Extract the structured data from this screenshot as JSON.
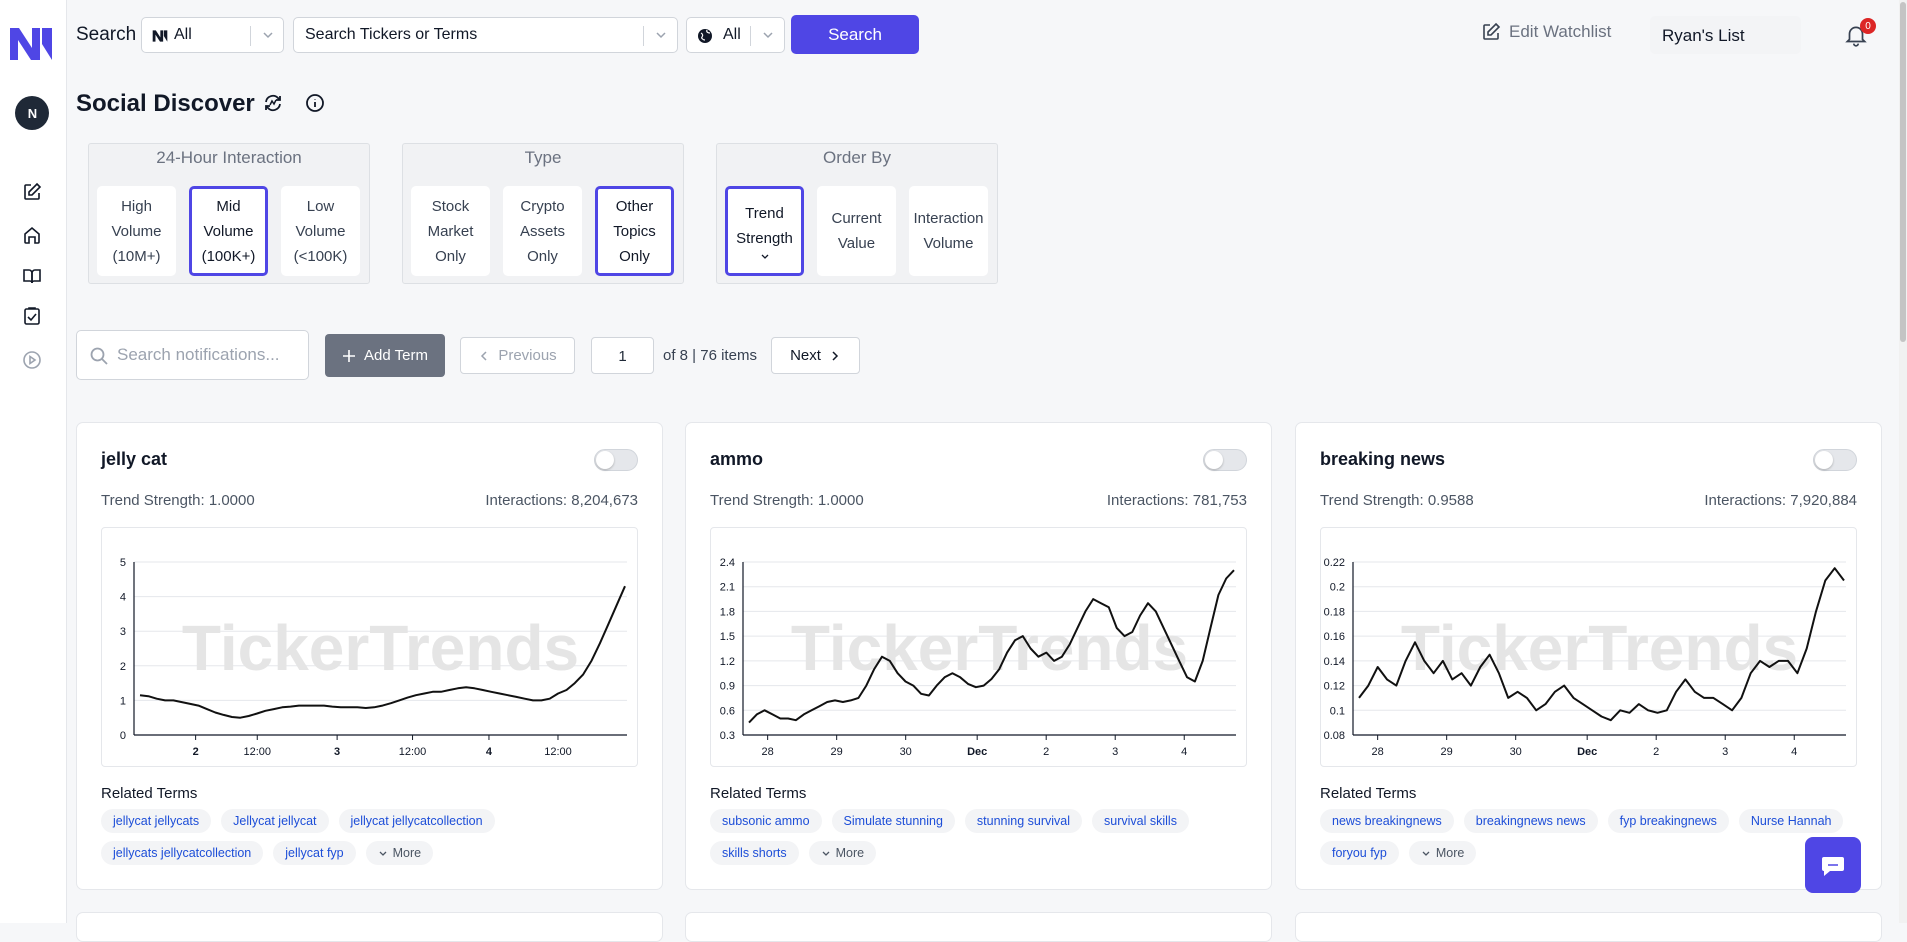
{
  "sidebar": {
    "logo": "N-logo",
    "avatar_text": "N",
    "items": [
      {
        "name": "edit-icon",
        "icon": "square-pen"
      },
      {
        "name": "home-icon",
        "icon": "home"
      },
      {
        "name": "book-icon",
        "icon": "book-open"
      },
      {
        "name": "clipboard-check-icon",
        "icon": "clipboard-check"
      },
      {
        "name": "play-circle-icon",
        "icon": "play-circle"
      }
    ]
  },
  "topbar": {
    "search_label": "Search",
    "source_select": "All",
    "term_select_placeholder": "Search Tickers or Terms",
    "region_select": "All",
    "search_button": "Search",
    "edit_watchlist": "Edit Watchlist",
    "watchlist_name": "Ryan's List",
    "notification_count": "0"
  },
  "page": {
    "title": "Social Discover"
  },
  "filters": [
    {
      "label": "24-Hour Interaction",
      "options": [
        {
          "lines": [
            "High",
            "Volume",
            "(10M+)"
          ],
          "active": false
        },
        {
          "lines": [
            "Mid",
            "Volume",
            "(100K+)"
          ],
          "active": true
        },
        {
          "lines": [
            "Low",
            "Volume",
            "(<100K)"
          ],
          "active": false
        }
      ]
    },
    {
      "label": "Type",
      "options": [
        {
          "lines": [
            "Stock",
            "Market",
            "Only"
          ],
          "active": false
        },
        {
          "lines": [
            "Crypto",
            "Assets",
            "Only"
          ],
          "active": false
        },
        {
          "lines": [
            "Other",
            "Topics",
            "Only"
          ],
          "active": true
        }
      ]
    },
    {
      "label": "Order By",
      "options": [
        {
          "lines": [
            "Trend",
            "Strength"
          ],
          "active": true,
          "chevron": true
        },
        {
          "lines": [
            "Current",
            "Value"
          ],
          "active": false
        },
        {
          "lines": [
            "Interaction",
            "Volume"
          ],
          "active": false
        }
      ]
    }
  ],
  "controls": {
    "search_placeholder": "Search notifications...",
    "add_term": "Add Term",
    "previous": "Previous",
    "page": "1",
    "page_info": "of 8 | 76 items",
    "next": "Next"
  },
  "watermark": "TickerTrends",
  "cards": [
    {
      "title": "jelly cat",
      "trend_strength": "Trend Strength: 1.0000",
      "interactions": "Interactions: 8,204,673",
      "related_label": "Related Terms",
      "tags": [
        "jellycat jellycats",
        "Jellycat jellycat",
        "jellycat jellycatcollection",
        "jellycats jellycatcollection",
        "jellycat fyp"
      ],
      "more": "More",
      "chart_data": {
        "type": "line",
        "ylim": [
          0,
          5
        ],
        "yticks": [
          "5",
          "4",
          "3",
          "2",
          "1",
          "0"
        ],
        "xticks": [
          {
            "label": "2",
            "bold": true,
            "x": 0.125
          },
          {
            "label": "12:00",
            "bold": false,
            "x": 0.25
          },
          {
            "label": "3",
            "bold": true,
            "x": 0.412
          },
          {
            "label": "12:00",
            "bold": false,
            "x": 0.565
          },
          {
            "label": "4",
            "bold": true,
            "x": 0.72
          },
          {
            "label": "12:00",
            "bold": false,
            "x": 0.86
          }
        ],
        "values": [
          1.15,
          1.12,
          1.05,
          1.0,
          1.0,
          0.95,
          0.9,
          0.85,
          0.75,
          0.65,
          0.58,
          0.52,
          0.5,
          0.55,
          0.62,
          0.7,
          0.75,
          0.8,
          0.82,
          0.85,
          0.85,
          0.85,
          0.85,
          0.82,
          0.8,
          0.8,
          0.8,
          0.78,
          0.8,
          0.85,
          0.92,
          1.0,
          1.08,
          1.15,
          1.2,
          1.25,
          1.25,
          1.3,
          1.35,
          1.38,
          1.35,
          1.3,
          1.25,
          1.2,
          1.15,
          1.1,
          1.05,
          1.0,
          1.0,
          1.05,
          1.2,
          1.3,
          1.5,
          1.75,
          2.15,
          2.65,
          3.2,
          3.75,
          4.3
        ]
      }
    },
    {
      "title": "ammo",
      "trend_strength": "Trend Strength: 1.0000",
      "interactions": "Interactions: 781,753",
      "related_label": "Related Terms",
      "tags": [
        "subsonic ammo",
        "Simulate stunning",
        "stunning survival",
        "survival skills",
        "skills shorts"
      ],
      "more": "More",
      "chart_data": {
        "type": "line",
        "ylim": [
          0.3,
          2.4
        ],
        "yticks": [
          "2.4",
          "2.1",
          "1.8",
          "1.5",
          "1.2",
          "0.9",
          "0.6",
          "0.3"
        ],
        "xticks": [
          {
            "label": "28",
            "bold": false,
            "x": 0.05
          },
          {
            "label": "29",
            "bold": false,
            "x": 0.19
          },
          {
            "label": "30",
            "bold": false,
            "x": 0.33
          },
          {
            "label": "Dec",
            "bold": true,
            "x": 0.475
          },
          {
            "label": "2",
            "bold": false,
            "x": 0.615
          },
          {
            "label": "3",
            "bold": false,
            "x": 0.755
          },
          {
            "label": "4",
            "bold": false,
            "x": 0.895
          }
        ],
        "values": [
          0.45,
          0.55,
          0.6,
          0.55,
          0.5,
          0.5,
          0.48,
          0.55,
          0.6,
          0.65,
          0.7,
          0.72,
          0.7,
          0.72,
          0.75,
          0.9,
          1.1,
          1.25,
          1.2,
          1.05,
          0.95,
          0.9,
          0.8,
          0.78,
          0.9,
          1.0,
          1.05,
          1.0,
          0.92,
          0.88,
          0.9,
          0.98,
          1.1,
          1.3,
          1.45,
          1.5,
          1.35,
          1.25,
          1.3,
          1.2,
          1.25,
          1.4,
          1.6,
          1.8,
          1.95,
          1.9,
          1.85,
          1.6,
          1.5,
          1.55,
          1.75,
          1.9,
          1.8,
          1.6,
          1.4,
          1.2,
          1.0,
          0.95,
          1.2,
          1.6,
          2.0,
          2.2,
          2.3
        ]
      }
    },
    {
      "title": "breaking news",
      "trend_strength": "Trend Strength: 0.9588",
      "interactions": "Interactions: 7,920,884",
      "related_label": "Related Terms",
      "tags": [
        "news breakingnews",
        "breakingnews news",
        "fyp breakingnews",
        "Nurse Hannah",
        "foryou fyp"
      ],
      "more": "More",
      "chart_data": {
        "type": "line",
        "ylim": [
          0.08,
          0.22
        ],
        "yticks": [
          "0.22",
          "0.2",
          "0.18",
          "0.16",
          "0.14",
          "0.12",
          "0.1",
          "0.08"
        ],
        "xticks": [
          {
            "label": "28",
            "bold": false,
            "x": 0.05
          },
          {
            "label": "29",
            "bold": false,
            "x": 0.19
          },
          {
            "label": "30",
            "bold": false,
            "x": 0.33
          },
          {
            "label": "Dec",
            "bold": true,
            "x": 0.475
          },
          {
            "label": "2",
            "bold": false,
            "x": 0.615
          },
          {
            "label": "3",
            "bold": false,
            "x": 0.755
          },
          {
            "label": "4",
            "bold": false,
            "x": 0.895
          }
        ],
        "values": [
          0.11,
          0.12,
          0.135,
          0.125,
          0.12,
          0.14,
          0.155,
          0.14,
          0.13,
          0.14,
          0.125,
          0.13,
          0.12,
          0.135,
          0.145,
          0.13,
          0.11,
          0.115,
          0.11,
          0.1,
          0.105,
          0.115,
          0.12,
          0.11,
          0.105,
          0.1,
          0.095,
          0.092,
          0.1,
          0.098,
          0.105,
          0.1,
          0.098,
          0.1,
          0.115,
          0.125,
          0.115,
          0.11,
          0.11,
          0.105,
          0.1,
          0.11,
          0.13,
          0.14,
          0.135,
          0.14,
          0.14,
          0.13,
          0.15,
          0.18,
          0.205,
          0.215,
          0.205
        ]
      }
    }
  ]
}
